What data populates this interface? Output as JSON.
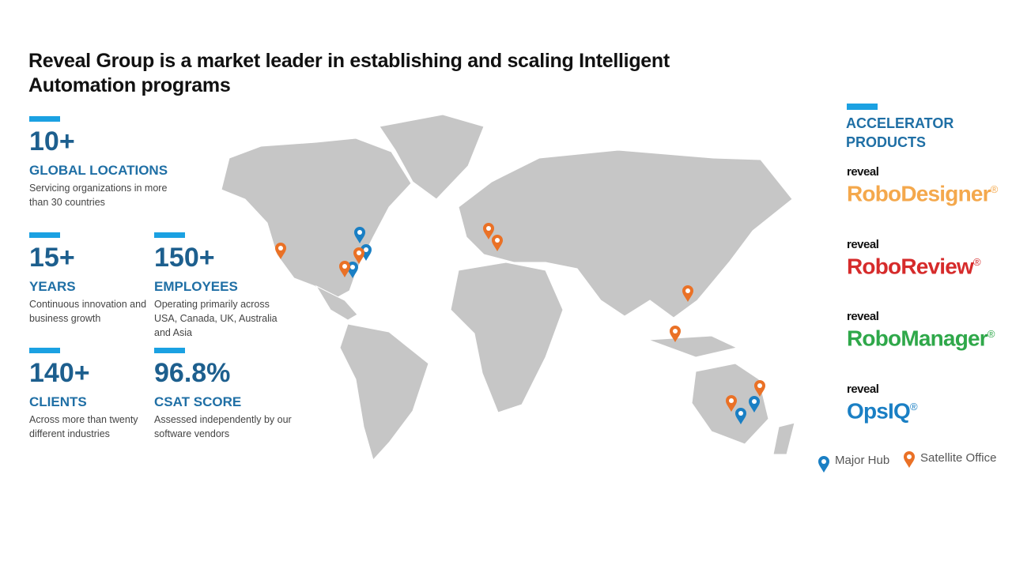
{
  "title": "Reveal Group is a market leader in establishing and scaling Intelligent Automation programs",
  "stats": [
    {
      "value": "10+",
      "label": "GLOBAL LOCATIONS",
      "description": "Servicing organizations in more than 30 countries"
    },
    {
      "value": "15+",
      "label": "YEARS",
      "description": "Continuous innovation and business growth"
    },
    {
      "value": "150+",
      "label": "EMPLOYEES",
      "description": "Operating primarily across USA, Canada, UK, Australia and Asia"
    },
    {
      "value": "140+",
      "label": "CLIENTS",
      "description": "Across more than twenty different industries"
    },
    {
      "value": "96.8%",
      "label": "CSAT SCORE",
      "description": "Assessed independently by our software vendors"
    }
  ],
  "accelerator": {
    "heading": "ACCELERATOR PRODUCTS",
    "products": [
      {
        "brand": "reveal",
        "name": "RoboDesigner",
        "mark": "®",
        "color": "#f4a84c"
      },
      {
        "brand": "reveal",
        "name": "RoboReview",
        "mark": "®",
        "color": "#d62b2b"
      },
      {
        "brand": "reveal",
        "name": "RoboManager",
        "mark": "®",
        "color": "#2fa84a"
      },
      {
        "brand": "reveal",
        "name": "OpsIQ",
        "mark": "®",
        "color": "#1a7fc4"
      }
    ]
  },
  "legend": {
    "major_hub": "Major Hub",
    "satellite_office": "Satellite Office"
  }
}
